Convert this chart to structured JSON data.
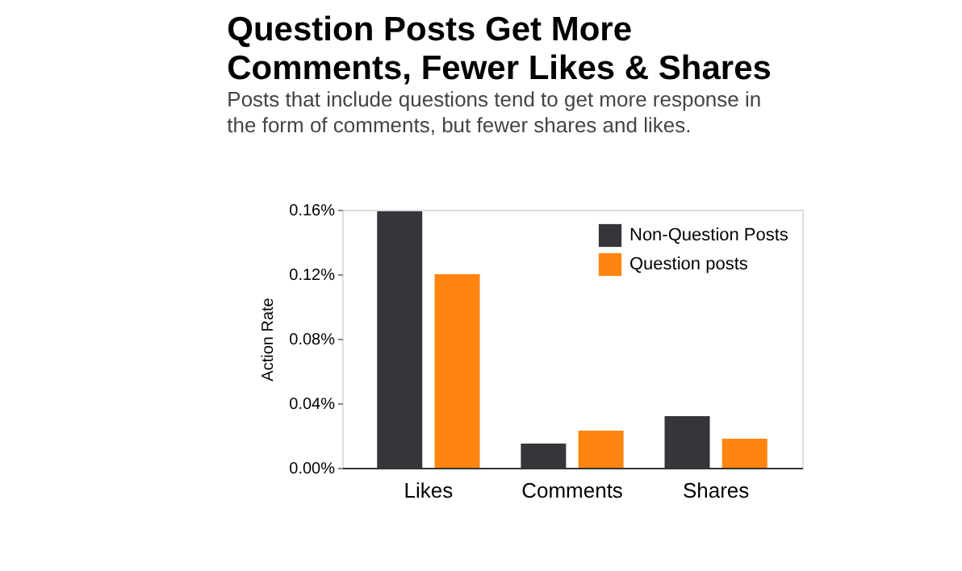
{
  "chart_data": {
    "type": "bar",
    "title": "Question Posts Get More Comments, Fewer Likes & Shares",
    "subtitle": "Posts that include questions tend to get more response in the form of comments, but fewer shares and likes.",
    "ylabel": "Action Rate",
    "categories": [
      "Likes",
      "Comments",
      "Shares"
    ],
    "series": [
      {
        "name": "Non-Question Posts",
        "color": "#35353a",
        "values": [
          0.159,
          0.015,
          0.032
        ]
      },
      {
        "name": "Question posts",
        "color": "#ff8410",
        "values": [
          0.12,
          0.023,
          0.018
        ]
      }
    ],
    "ylim": [
      0,
      0.16
    ],
    "yticks": [
      {
        "value": 0,
        "label": "0.00%"
      },
      {
        "value": 0.04,
        "label": "0.04%"
      },
      {
        "value": 0.08,
        "label": "0.08%"
      },
      {
        "value": 0.12,
        "label": "0.12%"
      },
      {
        "value": 0.16,
        "label": "0.16%"
      }
    ],
    "grid": false,
    "legend": "top right"
  }
}
